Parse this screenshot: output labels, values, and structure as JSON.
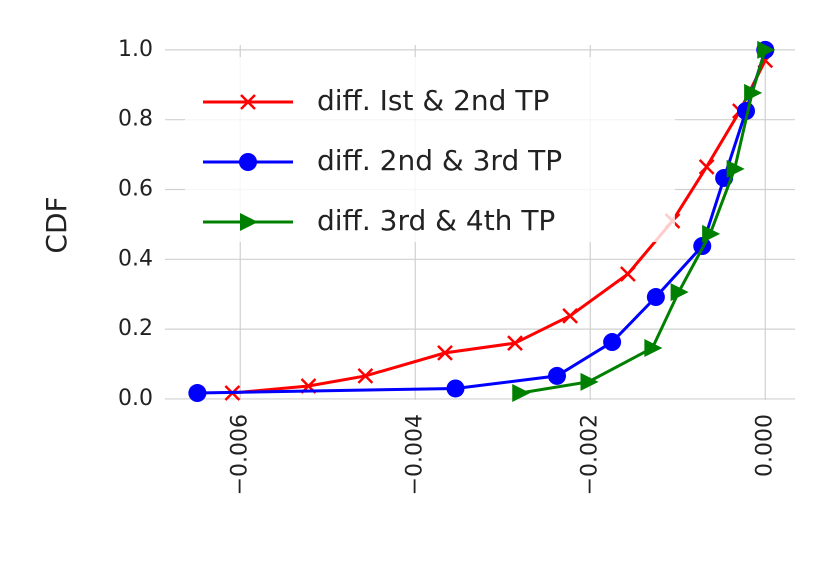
{
  "chart_data": {
    "type": "line",
    "y_label": "CDF",
    "xlim": [
      -0.00686,
      0.00034
    ],
    "ylim": [
      -0.003,
      1.014
    ],
    "xticks": [
      {
        "value": -0.006,
        "label": "−0.006"
      },
      {
        "value": -0.004,
        "label": "−0.004"
      },
      {
        "value": -0.002,
        "label": "−0.002"
      },
      {
        "value": 0,
        "label": "0.000"
      }
    ],
    "yticks": [
      {
        "value": 0,
        "label": "0.0"
      },
      {
        "value": 0.2,
        "label": "0.2"
      },
      {
        "value": 0.4,
        "label": "0.4"
      },
      {
        "value": 0.6,
        "label": "0.6"
      },
      {
        "value": 0.8,
        "label": "0.8"
      },
      {
        "value": 1,
        "label": "1.0"
      }
    ],
    "grid": true,
    "legend": "upper left",
    "series": [
      {
        "name": "diff. Ist & 2nd TP",
        "color": "#ff0000",
        "marker": "x",
        "x": [
          -0.00609,
          -0.00522,
          -0.00457,
          -0.00366,
          -0.00286,
          -0.00223,
          -0.00157,
          -0.00106,
          -0.00067,
          -0.00029,
          0
        ],
        "values": [
          0.017,
          0.037,
          0.066,
          0.132,
          0.16,
          0.238,
          0.358,
          0.51,
          0.665,
          0.825,
          0.97
        ]
      },
      {
        "name": "diff. 2nd & 3rd TP",
        "color": "#0000ff",
        "marker": "circle",
        "x": [
          -0.00649,
          -0.00354,
          -0.00238,
          -0.00175,
          -0.00125,
          -0.00072,
          -0.00047,
          -0.00022,
          0
        ],
        "values": [
          0.017,
          0.03,
          0.066,
          0.163,
          0.292,
          0.438,
          0.633,
          0.825,
          1.0
        ]
      },
      {
        "name": "diff. 3rd & 4th TP",
        "color": "#008000",
        "marker": "triangle",
        "x": [
          -0.0028,
          -0.00202,
          -0.00129,
          -0.00099,
          -0.00063,
          -0.00035,
          -0.00015,
          0
        ],
        "values": [
          0.017,
          0.049,
          0.146,
          0.306,
          0.473,
          0.659,
          0.877,
          1.0
        ]
      }
    ]
  }
}
